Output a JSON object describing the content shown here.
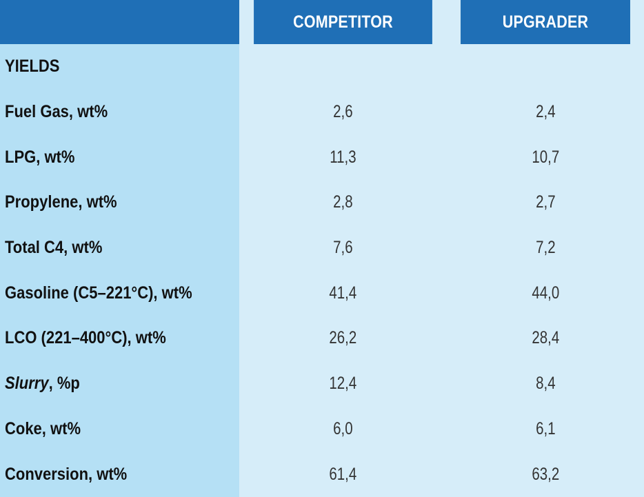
{
  "header": {
    "col_competitor": "COMPETITOR",
    "col_upgrader": "UPGRADER"
  },
  "section": {
    "title": "YIELDS"
  },
  "rows": [
    {
      "label": "Fuel Gas, wt%",
      "competitor": "2,6",
      "upgrader": "2,4"
    },
    {
      "label": "LPG, wt%",
      "competitor": "11,3",
      "upgrader": "10,7"
    },
    {
      "label": "Propylene, wt%",
      "competitor": "2,8",
      "upgrader": "2,7"
    },
    {
      "label": "Total C4, wt%",
      "competitor": "7,6",
      "upgrader": "7,2"
    },
    {
      "label": "Gasoline (C5–221°C), wt%",
      "competitor": "41,4",
      "upgrader": "44,0"
    },
    {
      "label": "LCO (221–400°C), wt%",
      "competitor": "26,2",
      "upgrader": "28,4"
    },
    {
      "label_italic": "Slurry",
      "label_rest": ", %p",
      "competitor": "12,4",
      "upgrader": "8,4"
    },
    {
      "label": "Coke, wt%",
      "competitor": "6,0",
      "upgrader": "6,1"
    },
    {
      "label": "Conversion, wt%",
      "competitor": "61,4",
      "upgrader": "63,2"
    }
  ],
  "colors": {
    "header_bg": "#1f6fb6",
    "label_col_bg": "#b5e0f5",
    "value_bg": "#d6edf9"
  }
}
